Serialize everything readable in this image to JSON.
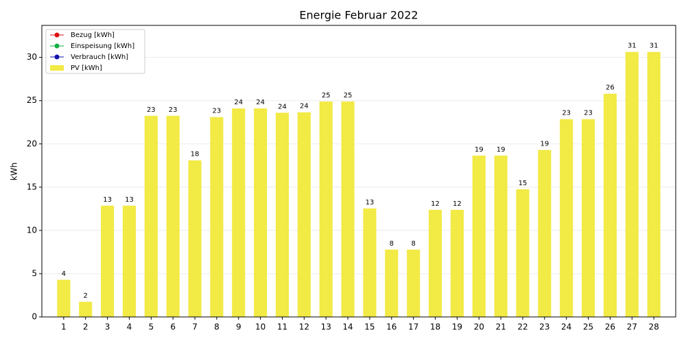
{
  "chart_data": {
    "type": "bar",
    "title": "Energie Februar 2022",
    "y_label": "kWh",
    "categories": [
      1,
      2,
      3,
      4,
      5,
      6,
      7,
      8,
      9,
      10,
      11,
      12,
      13,
      14,
      15,
      16,
      17,
      18,
      19,
      20,
      21,
      22,
      23,
      24,
      25,
      26,
      27,
      28
    ],
    "series": [
      {
        "name": "Bezug [kWh]",
        "type": "line",
        "color": "#e01010",
        "values": [
          null,
          null,
          null,
          null,
          null,
          null,
          null,
          null,
          null,
          null,
          null,
          null,
          null,
          null,
          null,
          null,
          null,
          null,
          null,
          null,
          null,
          null,
          null,
          null,
          null,
          null,
          null,
          null
        ]
      },
      {
        "name": "Einspeisung [kWh]",
        "type": "line",
        "color": "#10b040",
        "values": [
          null,
          null,
          null,
          null,
          null,
          null,
          null,
          null,
          null,
          null,
          null,
          null,
          null,
          null,
          null,
          null,
          null,
          null,
          null,
          null,
          null,
          null,
          null,
          null,
          null,
          null,
          null,
          null
        ]
      },
      {
        "name": "Verbrauch [kWh]",
        "type": "line",
        "color": "#1010b0",
        "values": [
          null,
          null,
          null,
          null,
          null,
          null,
          null,
          null,
          null,
          null,
          null,
          null,
          null,
          null,
          null,
          null,
          null,
          null,
          null,
          null,
          null,
          null,
          null,
          null,
          null,
          null,
          null,
          null
        ]
      },
      {
        "name": "PV [kWh]",
        "type": "bar",
        "color": "#f2ea45",
        "values": [
          4.3,
          1.75,
          12.86,
          12.86,
          23.25,
          23.25,
          18.1,
          23.1,
          24.1,
          24.1,
          23.6,
          23.65,
          24.9,
          24.9,
          12.54,
          7.78,
          7.78,
          12.38,
          12.38,
          18.65,
          18.65,
          14.76,
          19.3,
          22.86,
          22.86,
          25.8,
          30.63,
          30.63
        ],
        "value_labels": [
          "4",
          "2",
          "13",
          "13",
          "23",
          "23",
          "18",
          "23",
          "24",
          "24",
          "24",
          "24",
          "25",
          "25",
          "13",
          "8",
          "8",
          "12",
          "12",
          "19",
          "19",
          "15",
          "19",
          "23",
          "23",
          "26",
          "31",
          "31"
        ]
      }
    ],
    "ylim": [
      0,
      33.7
    ],
    "yticks": [
      0,
      5,
      10,
      15,
      20,
      25,
      30
    ],
    "grid": true,
    "legend": "upper left"
  }
}
